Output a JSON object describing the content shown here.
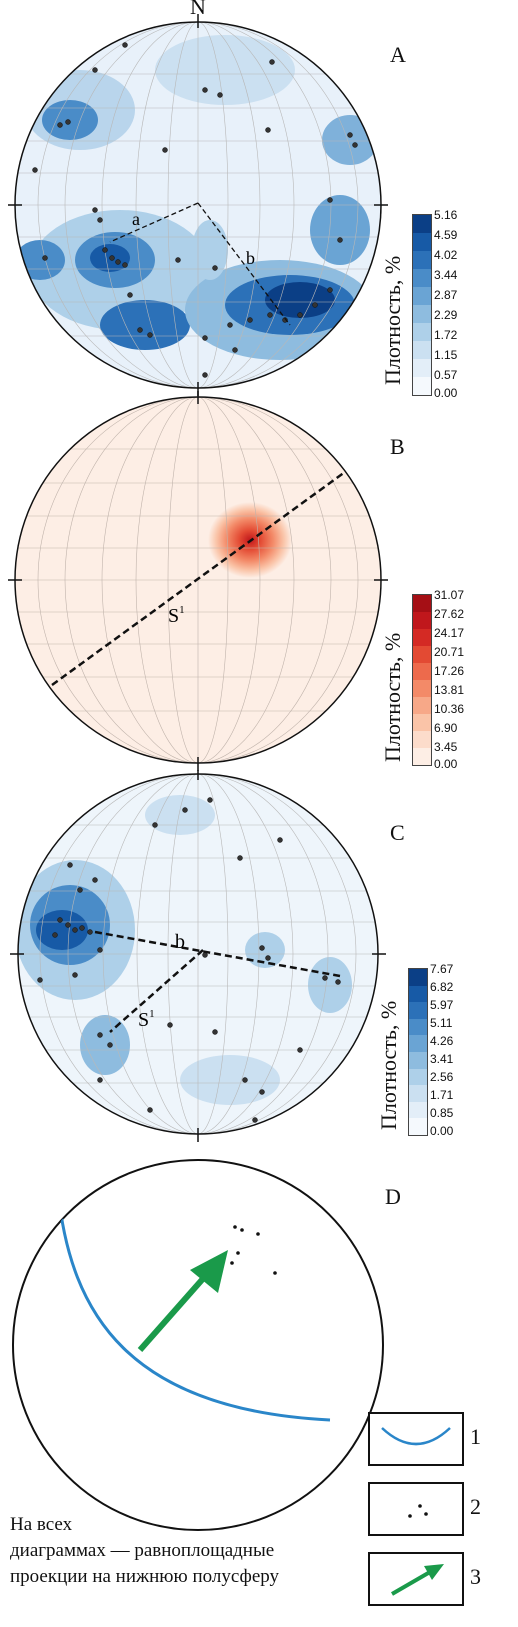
{
  "panelA": {
    "north": "N",
    "letter": "A",
    "line_a": "a",
    "line_b": "b",
    "colorbar": {
      "title": "Плотность, %",
      "ticks": [
        "5.16",
        "4.59",
        "4.02",
        "3.44",
        "2.87",
        "2.29",
        "1.72",
        "1.15",
        "0.57",
        "0.00"
      ],
      "colors": [
        "#0b3f86",
        "#175aa6",
        "#2c71b8",
        "#4a8cc8",
        "#6aa4d4",
        "#8ebcdf",
        "#aed0e9",
        "#cbe0f1",
        "#e3eef8",
        "#f5f9fd"
      ]
    }
  },
  "panelB": {
    "letter": "B",
    "line_label": "S",
    "line_label_sup": "1",
    "colorbar": {
      "title": "Плотность, %",
      "ticks": [
        "31.07",
        "27.62",
        "24.17",
        "20.71",
        "17.26",
        "13.81",
        "10.36",
        "6.90",
        "3.45",
        "0.00"
      ],
      "colors": [
        "#a50f15",
        "#c0171c",
        "#d42a24",
        "#e34a33",
        "#ed6a4c",
        "#f38a68",
        "#f7a888",
        "#fac4a8",
        "#fcdccb",
        "#fdeee5"
      ]
    }
  },
  "panelC": {
    "letter": "C",
    "line_label": "S",
    "line_label_sup": "1",
    "line_b": "b",
    "colorbar": {
      "title": "Плотность, %",
      "ticks": [
        "7.67",
        "6.82",
        "5.97",
        "5.11",
        "4.26",
        "3.41",
        "2.56",
        "1.71",
        "0.85",
        "0.00"
      ],
      "colors": [
        "#0b3f86",
        "#175aa6",
        "#2c71b8",
        "#4a8cc8",
        "#6aa4d4",
        "#8ebcdf",
        "#aed0e9",
        "#cbe0f1",
        "#e3eef8",
        "#f5f9fd"
      ]
    }
  },
  "panelD": {
    "letter": "D"
  },
  "legend": {
    "items": [
      {
        "num": "1",
        "icon": "great-circle-arc-icon",
        "color": "#2a86c9"
      },
      {
        "num": "2",
        "icon": "dots-icon",
        "color": "#111111"
      },
      {
        "num": "3",
        "icon": "arrow-icon",
        "color": "#1a9a4a"
      }
    ]
  },
  "note": {
    "line1": "На всех",
    "line2": "диаграммах — равноплощадные",
    "line3": "проекции на нижнюю полусферу"
  }
}
